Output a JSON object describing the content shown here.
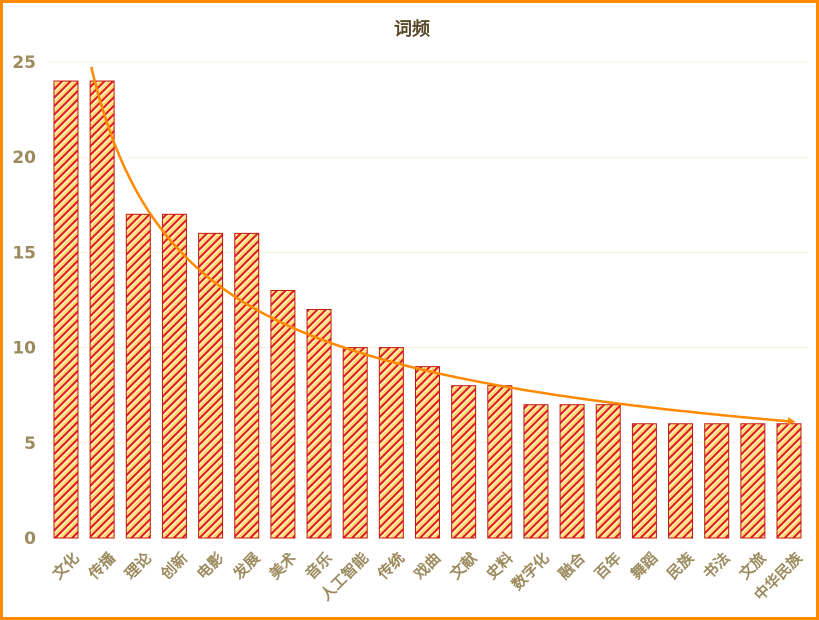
{
  "chart_data": {
    "type": "bar",
    "title": "词频",
    "categories": [
      "文化",
      "传播",
      "理论",
      "创新",
      "电影",
      "发展",
      "美术",
      "音乐",
      "人工智能",
      "传统",
      "戏曲",
      "文献",
      "史料",
      "数字化",
      "融合",
      "百年",
      "舞蹈",
      "民族",
      "书法",
      "文旅",
      "中华民族"
    ],
    "values": [
      24,
      24,
      17,
      17,
      16,
      16,
      13,
      12,
      10,
      10,
      9,
      8,
      8,
      7,
      7,
      7,
      6,
      6,
      6,
      6,
      6
    ],
    "ylim": [
      0,
      25
    ],
    "yticks": [
      0,
      5,
      10,
      15,
      20,
      25
    ],
    "grid": true,
    "legend": "none",
    "trendline": {
      "type": "power",
      "arrow_end": true
    },
    "xlabel": "",
    "ylabel": "",
    "colors": {
      "bar_stripe": "#e0201a",
      "bar_fill": "#ffe14d",
      "bar_border": "#c0180f",
      "trendline": "#ff8a00",
      "axis_text": "#9c8b5e",
      "title": "#5a4a2a",
      "grid": "#f6f0d8",
      "border": "#ff8a00"
    }
  }
}
